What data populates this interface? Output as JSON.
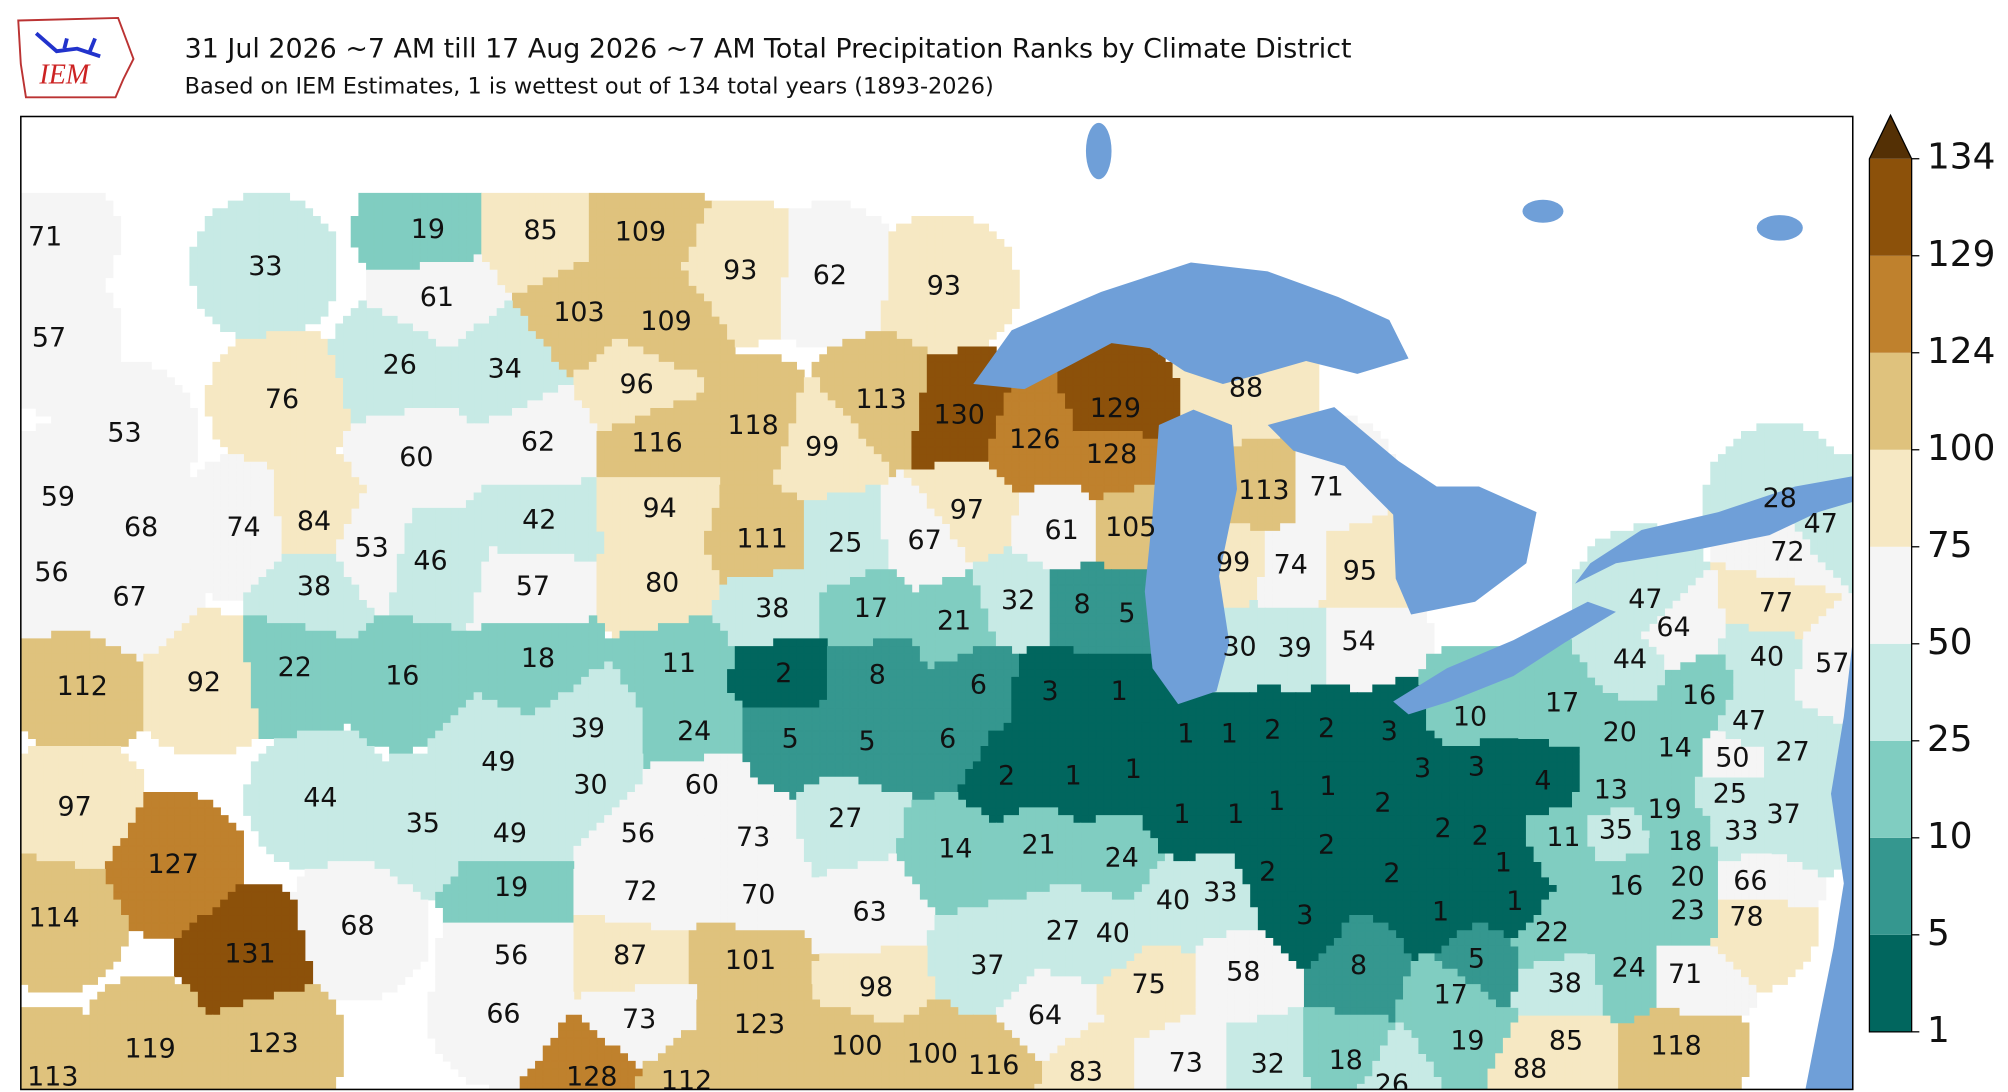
{
  "header": {
    "logo": "IEM",
    "title": "31 Jul 2026 ~7 AM till 17 Aug 2026 ~7 AM Total Precipitation Ranks by Climate District",
    "subtitle": "Based on IEM Estimates, 1 is wettest out of 134 total years (1893-2026)"
  },
  "map": {
    "districts": [
      71,
      33,
      57,
      76,
      53,
      19,
      85,
      109,
      61,
      103,
      109,
      26,
      34,
      96,
      93,
      62,
      93,
      118,
      113,
      99,
      130,
      126,
      129,
      128,
      88,
      60,
      62,
      116,
      42,
      94,
      53,
      46,
      57,
      80,
      59,
      68,
      74,
      84,
      56,
      67,
      38,
      112,
      92,
      22,
      111,
      25,
      67,
      97,
      61,
      105,
      113,
      71,
      99,
      74,
      95,
      38,
      17,
      21,
      32,
      8,
      5,
      30,
      39,
      54,
      16,
      18,
      11,
      49,
      39,
      24,
      30,
      60,
      2,
      8,
      6,
      5,
      5,
      6,
      3,
      1,
      2,
      1,
      1,
      1,
      1,
      2,
      2,
      3,
      10,
      3,
      3,
      1,
      2,
      1,
      1,
      1,
      2,
      2,
      2,
      1,
      2,
      2,
      1,
      1,
      3,
      8,
      5,
      17,
      97,
      127,
      44,
      35,
      68,
      114,
      131,
      49,
      56,
      73,
      19,
      72,
      70,
      56,
      87,
      101,
      27,
      14,
      21,
      24,
      63,
      40,
      33,
      27,
      40,
      37,
      98,
      75,
      58,
      64,
      66,
      73,
      123,
      113,
      119,
      123,
      128,
      112,
      100,
      100,
      116,
      83,
      73,
      32,
      18,
      26,
      19,
      85,
      88,
      118,
      4,
      17,
      20,
      16,
      14,
      13,
      19,
      11,
      35,
      18,
      16,
      20,
      23,
      22,
      38,
      24,
      71,
      33,
      66,
      78,
      37,
      25,
      50,
      47,
      27,
      44,
      64,
      47,
      40,
      57,
      77,
      72,
      47,
      28
    ],
    "colorbar": {
      "ticks": [
        1,
        5,
        10,
        25,
        50,
        75,
        100,
        124,
        129,
        134
      ],
      "colors": [
        "#01665e",
        "#35978f",
        "#80cdc1",
        "#c7eae5",
        "#f5f5f5",
        "#f6e8c3",
        "#dfc27d",
        "#bf812d",
        "#8c510a"
      ],
      "over_color": "#543005"
    }
  }
}
